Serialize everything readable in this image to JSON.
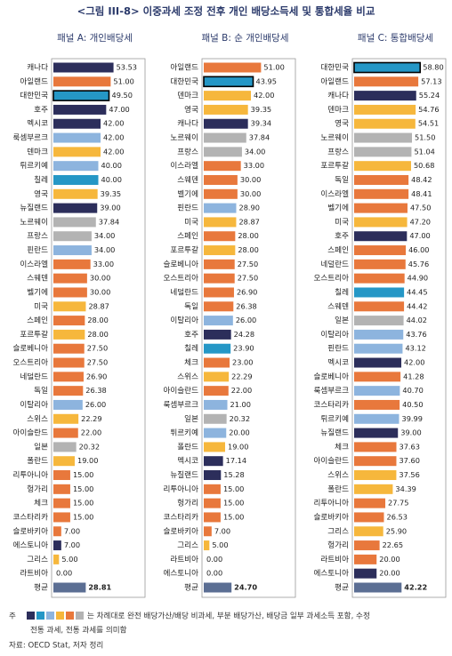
{
  "title": "<그림 III-8> 이중과세 조정 전후 개인 배당소득세 및 통합세율 비교",
  "chart_data": [
    {
      "type": "bar",
      "orientation": "horizontal",
      "title": "패널 A: 개인배당세",
      "categories": [
        "캐나다",
        "아일랜드",
        "대한민국",
        "호주",
        "멕시코",
        "룩셈부르크",
        "덴마크",
        "튀르키예",
        "칠레",
        "영국",
        "뉴질랜드",
        "노르웨이",
        "프랑스",
        "핀란드",
        "이스라엘",
        "스웨덴",
        "벨기에",
        "미국",
        "스페인",
        "포르투갈",
        "슬로베니아",
        "오스트리아",
        "네덜란드",
        "독일",
        "이탈리아",
        "스위스",
        "아이슬란드",
        "일본",
        "폴란드",
        "리투아니아",
        "헝가리",
        "체크",
        "코스타리카",
        "슬로바키아",
        "에스토니아",
        "그리스",
        "라트비아",
        "평균"
      ],
      "values": [
        53.53,
        51,
        49.5,
        47,
        42,
        42,
        42,
        40,
        40,
        39.35,
        39,
        37.84,
        34,
        34,
        33,
        30,
        30,
        28.87,
        28,
        28,
        27.5,
        27.5,
        26.9,
        26.38,
        26,
        22.29,
        22,
        20.32,
        19,
        15,
        15,
        15,
        15,
        7,
        7,
        5,
        0,
        28.81
      ],
      "value_labels": [
        "53.53",
        "51.00",
        "49.50",
        "47.00",
        "42.00",
        "42.00",
        "42.00",
        "40.00",
        "40.00",
        "39.35",
        "39.00",
        "37.84",
        "34.00",
        "34.00",
        "33.00",
        "30.00",
        "30.00",
        "28.87",
        "28.00",
        "28.00",
        "27.50",
        "27.50",
        "26.90",
        "26.38",
        "26.00",
        "22.29",
        "22.00",
        "20.32",
        "19.00",
        "15.00",
        "15.00",
        "15.00",
        "15.00",
        "7.00",
        "7.00",
        "5.00",
        "0.00",
        "28.81"
      ],
      "colors": [
        "#2c2e5b",
        "#e8783c",
        "#2597c6",
        "#2c2e5b",
        "#2c2e5b",
        "#8db4de",
        "#f6b73c",
        "#8db4de",
        "#2597c6",
        "#f6b73c",
        "#2c2e5b",
        "#b3b3b3",
        "#b3b3b3",
        "#8db4de",
        "#e8783c",
        "#e8783c",
        "#e8783c",
        "#f6b73c",
        "#e8783c",
        "#f6b73c",
        "#e8783c",
        "#e8783c",
        "#e8783c",
        "#e8783c",
        "#8db4de",
        "#f6b73c",
        "#e8783c",
        "#b3b3b3",
        "#f6b73c",
        "#e8783c",
        "#e8783c",
        "#e8783c",
        "#e8783c",
        "#e8783c",
        "#2c2e5b",
        "#f6b73c",
        "#e8783c",
        "#5b6e93"
      ],
      "highlight_index": 2,
      "xlim": [
        0,
        80
      ]
    },
    {
      "type": "bar",
      "orientation": "horizontal",
      "title": "패널 B: 순 개인배당세",
      "categories": [
        "아일랜드",
        "대한민국",
        "덴마크",
        "영국",
        "캐나다",
        "노르웨이",
        "프랑스",
        "이스라엘",
        "스웨덴",
        "벨기에",
        "핀란드",
        "미국",
        "스페인",
        "포르투갈",
        "슬로베니아",
        "오스트리아",
        "네덜란드",
        "독일",
        "이탈리아",
        "호주",
        "칠레",
        "체크",
        "스위스",
        "아이슬란드",
        "룩셈부르크",
        "일본",
        "튀르키예",
        "폴란드",
        "멕시코",
        "뉴질랜드",
        "리투아니아",
        "헝가리",
        "코스타리카",
        "슬로바키아",
        "그리스",
        "라트비아",
        "에스토니아",
        "평균"
      ],
      "values": [
        51,
        43.95,
        42,
        39.35,
        39.34,
        37.84,
        34,
        33,
        30,
        30,
        28.9,
        28.87,
        28,
        28,
        27.5,
        27.5,
        26.9,
        26.38,
        26,
        24.28,
        23.9,
        23,
        22.29,
        22,
        21,
        20.32,
        20,
        19,
        17.14,
        15.28,
        15,
        15,
        15,
        7,
        5,
        0,
        0,
        24.7
      ],
      "value_labels": [
        "51.00",
        "43.95",
        "42.00",
        "39.35",
        "39.34",
        "37.84",
        "34.00",
        "33.00",
        "30.00",
        "30.00",
        "28.90",
        "28.87",
        "28.00",
        "28.00",
        "27.50",
        "27.50",
        "26.90",
        "26.38",
        "26.00",
        "24.28",
        "23.90",
        "23.00",
        "22.29",
        "22.00",
        "21.00",
        "20.32",
        "20.00",
        "19.00",
        "17.14",
        "15.28",
        "15.00",
        "15.00",
        "15.00",
        "7.00",
        "5.00",
        "0.00",
        "0.00",
        "24.70"
      ],
      "colors": [
        "#e8783c",
        "#2597c6",
        "#f6b73c",
        "#f6b73c",
        "#2c2e5b",
        "#b3b3b3",
        "#b3b3b3",
        "#e8783c",
        "#e8783c",
        "#e8783c",
        "#8db4de",
        "#f6b73c",
        "#e8783c",
        "#f6b73c",
        "#e8783c",
        "#e8783c",
        "#e8783c",
        "#e8783c",
        "#8db4de",
        "#2c2e5b",
        "#2597c6",
        "#e8783c",
        "#f6b73c",
        "#e8783c",
        "#8db4de",
        "#b3b3b3",
        "#8db4de",
        "#f6b73c",
        "#2c2e5b",
        "#2c2e5b",
        "#e8783c",
        "#e8783c",
        "#e8783c",
        "#e8783c",
        "#f6b73c",
        "#e8783c",
        "#2c2e5b",
        "#5b6e93"
      ],
      "highlight_index": 1,
      "xlim": [
        0,
        80
      ]
    },
    {
      "type": "bar",
      "orientation": "horizontal",
      "title": "패널 C: 통합배당세",
      "categories": [
        "대한민국",
        "아일랜드",
        "캐나다",
        "덴마크",
        "영국",
        "노르웨이",
        "프랑스",
        "포르투갈",
        "독일",
        "이스라엘",
        "벨기에",
        "미국",
        "호주",
        "스페인",
        "네덜란드",
        "오스트리아",
        "칠레",
        "스웨덴",
        "일본",
        "이탈리아",
        "핀란드",
        "멕시코",
        "슬로베니아",
        "룩셈부르크",
        "코스타리카",
        "튀르키예",
        "뉴질랜드",
        "체크",
        "아이슬란드",
        "스위스",
        "폴란드",
        "리투아니아",
        "슬로바키아",
        "그리스",
        "헝가리",
        "라트비아",
        "에스토니아",
        "평균"
      ],
      "values": [
        58.8,
        57.13,
        55.24,
        54.76,
        54.51,
        51.5,
        51.04,
        50.68,
        48.42,
        48.41,
        47.5,
        47.2,
        47,
        46,
        45.76,
        44.9,
        44.45,
        44.42,
        44.02,
        43.76,
        43.12,
        42,
        41.28,
        40.7,
        40.5,
        39.99,
        39,
        37.63,
        37.6,
        37.56,
        34.39,
        27.75,
        26.53,
        25.9,
        22.65,
        20,
        20,
        42.22
      ],
      "value_labels": [
        "58.80",
        "57.13",
        "55.24",
        "54.76",
        "54.51",
        "51.50",
        "51.04",
        "50.68",
        "48.42",
        "48.41",
        "47.50",
        "47.20",
        "47.00",
        "46.00",
        "45.76",
        "44.90",
        "44.45",
        "44.42",
        "44.02",
        "43.76",
        "43.12",
        "42.00",
        "41.28",
        "40.70",
        "40.50",
        "39.99",
        "39.00",
        "37.63",
        "37.60",
        "37.56",
        "34.39",
        "27.75",
        "26.53",
        "25.90",
        "22.65",
        "20.00",
        "20.00",
        "42.22"
      ],
      "colors": [
        "#2597c6",
        "#e8783c",
        "#2c2e5b",
        "#f6b73c",
        "#f6b73c",
        "#b3b3b3",
        "#b3b3b3",
        "#f6b73c",
        "#e8783c",
        "#e8783c",
        "#e8783c",
        "#f6b73c",
        "#2c2e5b",
        "#e8783c",
        "#e8783c",
        "#e8783c",
        "#2597c6",
        "#e8783c",
        "#b3b3b3",
        "#8db4de",
        "#8db4de",
        "#2c2e5b",
        "#e8783c",
        "#8db4de",
        "#e8783c",
        "#8db4de",
        "#2c2e5b",
        "#e8783c",
        "#e8783c",
        "#f6b73c",
        "#f6b73c",
        "#e8783c",
        "#e8783c",
        "#f6b73c",
        "#e8783c",
        "#e8783c",
        "#2c2e5b",
        "#5b6e93"
      ],
      "highlight_index": 0,
      "xlim": [
        0,
        80
      ]
    }
  ],
  "note": {
    "label": "주",
    "swatches": [
      "#2c2e5b",
      "#2597c6",
      "#8db4de",
      "#f6b73c",
      "#e8783c",
      "#b3b3b3"
    ],
    "text_lines": [
      "는 차례대로 완전 배당가산/배당 비과세, 부분 배당가산, 배당금 일부 과세소득 포함, 수정",
      "전통 과세, 전통 과세를 의미함"
    ]
  },
  "source": "자료: OECD Stat, 저자 정리"
}
